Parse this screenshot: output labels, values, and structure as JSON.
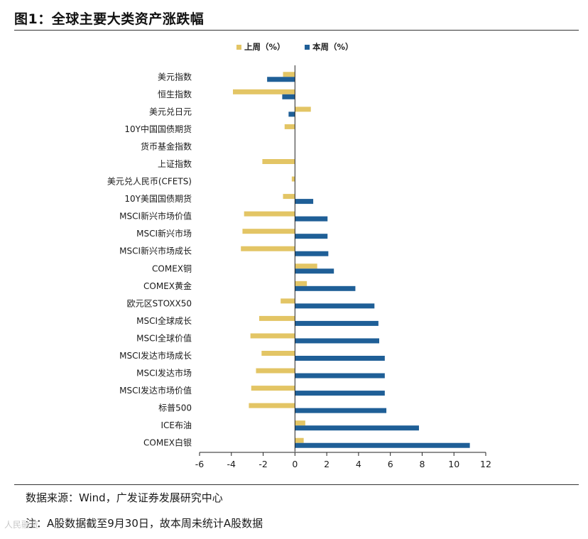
{
  "header": {
    "title": "图1：全球主要大类资产涨跌幅"
  },
  "chart_data": {
    "type": "bar",
    "orientation": "horizontal",
    "legend_position": "top-center",
    "categories": [
      "美元指数",
      "恒生指数",
      "美元兑日元",
      "10Y中国国债期货",
      "货币基金指数",
      "上证指数",
      "美元兑人民币(CFETS)",
      "10Y美国国债期货",
      "MSCI新兴市场价值",
      "MSCI新兴市场",
      "MSCI新兴市场成长",
      "COMEX铜",
      "COMEX黄金",
      "欧元区STOXX50",
      "MSCI全球成长",
      "MSCI全球价值",
      "MSCI发达市场成长",
      "MSCI发达市场",
      "MSCI发达市场价值",
      "标普500",
      "ICE布油",
      "COMEX白银"
    ],
    "series": [
      {
        "name": "上周（%）",
        "color": "#E3C565",
        "values": [
          -0.75,
          -3.9,
          1.0,
          -0.65,
          0.0,
          -2.05,
          -0.2,
          -0.75,
          -3.2,
          -3.3,
          -3.4,
          1.4,
          0.75,
          -0.9,
          -2.25,
          -2.8,
          -2.1,
          -2.45,
          -2.75,
          -2.9,
          0.65,
          0.55
        ]
      },
      {
        "name": "本周（%）",
        "color": "#1F5F97",
        "values": [
          -1.75,
          -0.8,
          -0.4,
          0.0,
          0.0,
          0.0,
          0.0,
          1.15,
          2.05,
          2.05,
          2.1,
          2.45,
          3.8,
          5.0,
          5.25,
          5.3,
          5.65,
          5.65,
          5.65,
          5.75,
          7.8,
          11.0
        ]
      }
    ],
    "xlim": [
      -6,
      12
    ],
    "xticks": [
      "-6",
      "-4",
      "-2",
      "0",
      "2",
      "4",
      "6",
      "8",
      "10",
      "12"
    ],
    "xtick_values": [
      -6,
      -4,
      -2,
      0,
      2,
      4,
      6,
      8,
      10,
      12
    ],
    "grid": false
  },
  "footer": {
    "source": "数据来源：Wind，广发证券发展研究中心",
    "note": "注：A股数据截至9月30日，故本周未统计A股数据",
    "watermark": "人民融资"
  }
}
